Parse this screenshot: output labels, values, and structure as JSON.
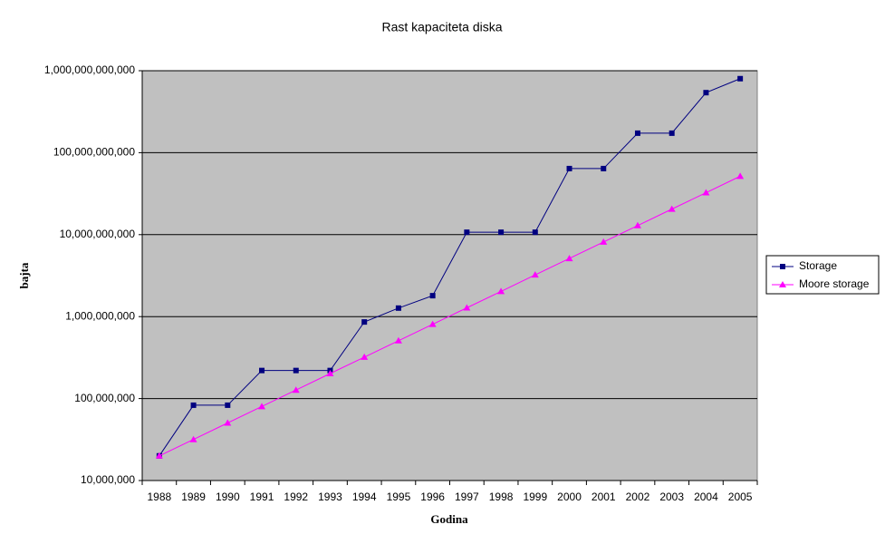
{
  "chart_data": {
    "type": "line",
    "title": "Rast kapaciteta diska",
    "x_label": "Godina",
    "y_label": "bajta",
    "categories": [
      "1988",
      "1989",
      "1990",
      "1991",
      "1992",
      "1993",
      "1994",
      "1995",
      "1996",
      "1997",
      "1998",
      "1999",
      "2000",
      "2001",
      "2002",
      "2003",
      "2004",
      "2005"
    ],
    "series": [
      {
        "name": "Storage",
        "color": "#000080",
        "marker": "square",
        "values": [
          20000000,
          83000000,
          83000000,
          220000000,
          220000000,
          220000000,
          860000000,
          1270000000,
          1800000000,
          10700000000,
          10700000000,
          10700000000,
          64000000000,
          64000000000,
          173000000000,
          173000000000,
          540000000000,
          800000000000
        ]
      },
      {
        "name": "Moore storage",
        "color": "#ff00ff",
        "marker": "triangle",
        "values": [
          20000000,
          31700000,
          50400000,
          80000000,
          127000000,
          202000000,
          320000000,
          508000000,
          806000000,
          1280000000,
          2030000000,
          3230000000,
          5120000000,
          8130000000,
          12900000000,
          20500000000,
          32500000000,
          51600000000
        ]
      }
    ],
    "log_y": true,
    "grid": true,
    "legend": "right",
    "background": "#c0c0c0",
    "ylim": [
      10000000,
      1000000000000
    ],
    "yticks": [
      {
        "value": 10000000,
        "label": "10,000,000"
      },
      {
        "value": 100000000,
        "label": "100,000,000"
      },
      {
        "value": 1000000000,
        "label": "1,000,000,000"
      },
      {
        "value": 10000000000,
        "label": "10,000,000,000"
      },
      {
        "value": 100000000000,
        "label": "100,000,000,000"
      },
      {
        "value": 1000000000000,
        "label": "1,000,000,000,000"
      }
    ]
  }
}
